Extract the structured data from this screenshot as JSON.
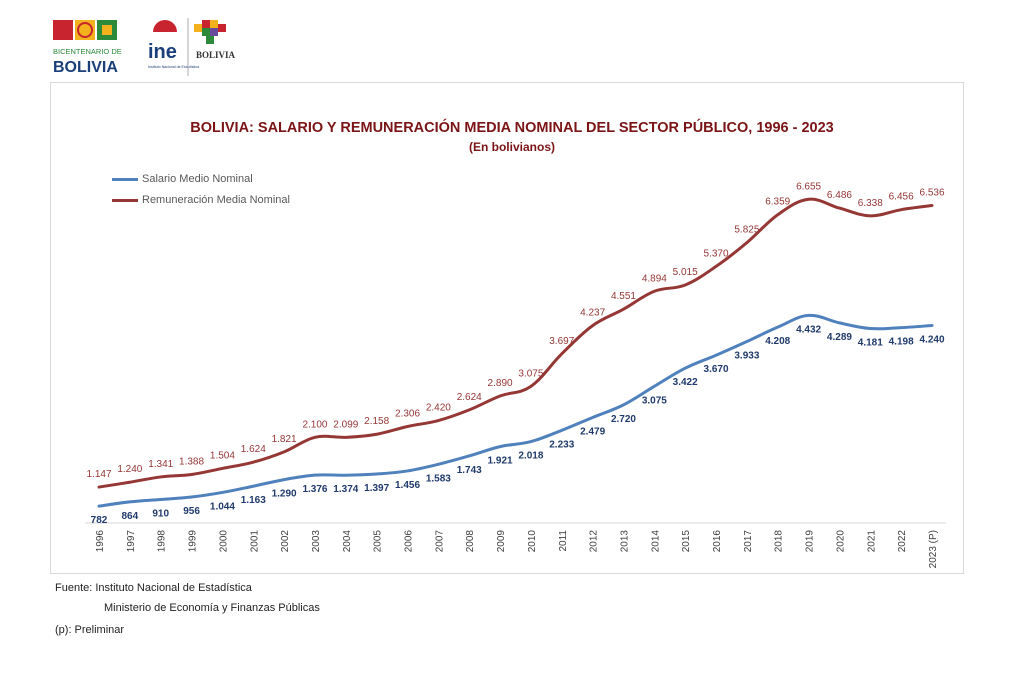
{
  "header": {
    "logo_bicentenario_line1": "BICENTENARIO DE",
    "logo_bicentenario_line2": "BOLIVIA",
    "logo_ine": "ine",
    "logo_ine_caption": "Instituto Nacional de Estadística",
    "logo_estado": "BOLIVIA"
  },
  "colors": {
    "salario": "#4f81bd",
    "salario_label": "#1f3a6b",
    "remuneracion": "#953735",
    "remuneracion_label": "#953735",
    "title": "#7b1416"
  },
  "chart_data": {
    "type": "line",
    "title": "BOLIVIA: SALARIO Y REMUNERACIÓN MEDIA NOMINAL DEL SECTOR PÚBLICO, 1996 - 2023",
    "subtitle": "(En bolivianos)",
    "categories": [
      "1996",
      "1997",
      "1998",
      "1999",
      "2000",
      "2001",
      "2002",
      "2003",
      "2004",
      "2005",
      "2006",
      "2007",
      "2008",
      "2009",
      "2010",
      "2011",
      "2012",
      "2013",
      "2014",
      "2015",
      "2016",
      "2017",
      "2018",
      "2019",
      "2020",
      "2021",
      "2022",
      "2023 (P)"
    ],
    "series": [
      {
        "name": "Salario Medio Nominal",
        "values": [
          782,
          864,
          910,
          956,
          1044,
          1163,
          1290,
          1376,
          1374,
          1397,
          1456,
          1583,
          1743,
          1921,
          2018,
          2233,
          2479,
          2720,
          3075,
          3422,
          3670,
          3933,
          4208,
          4432,
          4289,
          4181,
          4198,
          4240
        ],
        "labels": [
          "782",
          "864",
          "910",
          "956",
          "1.044",
          "1.163",
          "1.290",
          "1.376",
          "1.374",
          "1.397",
          "1.456",
          "1.583",
          "1.743",
          "1.921",
          "2.018",
          "2.233",
          "2.479",
          "2.720",
          "3.075",
          "3.422",
          "3.670",
          "3.933",
          "4.208",
          "4.432",
          "4.289",
          "4.181",
          "4.198",
          "4.240"
        ]
      },
      {
        "name": "Remuneración Media Nominal",
        "values": [
          1147,
          1240,
          1341,
          1388,
          1504,
          1624,
          1821,
          2100,
          2099,
          2158,
          2306,
          2420,
          2624,
          2890,
          3075,
          3697,
          4237,
          4551,
          4894,
          5015,
          5370,
          5825,
          6359,
          6655,
          6486,
          6338,
          6456,
          6536
        ],
        "labels": [
          "1.147",
          "1.240",
          "1.341",
          "1.388",
          "1.504",
          "1.624",
          "1.821",
          "2.100",
          "2.099",
          "2.158",
          "2.306",
          "2.420",
          "2.624",
          "2.890",
          "3.075",
          "3.697",
          "4.237",
          "4.551",
          "4.894",
          "5.015",
          "5.370",
          "5.825",
          "6.359",
          "6.655",
          "6.486",
          "6.338",
          "6.456",
          "6.536"
        ]
      }
    ],
    "ylim": [
      0,
      7000
    ],
    "legend": "top-left",
    "grid": false
  },
  "footer": {
    "source_label": "Fuente: Instituto Nacional de Estadística",
    "source_line2": "Ministerio de Economía y Finanzas Públicas",
    "note": "(p): Preliminar"
  }
}
